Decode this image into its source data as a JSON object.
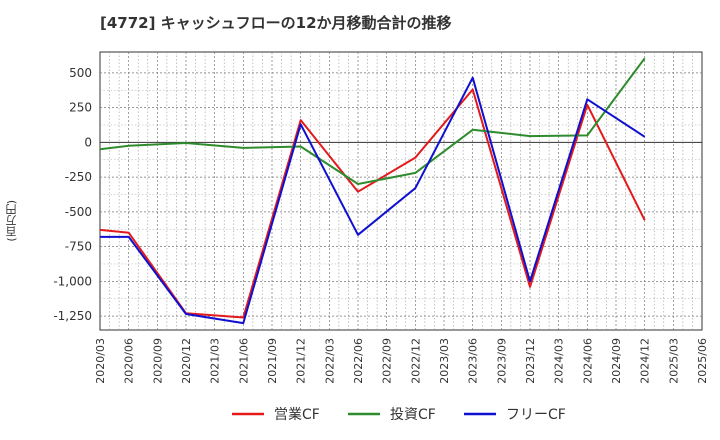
{
  "chart_data": {
    "type": "line",
    "title": "[4772]  キャッシュフローの12か月移動合計の推移",
    "ylabel": "(百万円)",
    "xlabel": "",
    "ylim": [
      -1350,
      650
    ],
    "yticks": [
      500,
      250,
      0,
      -250,
      -500,
      -750,
      -1000,
      -1250
    ],
    "ytick_labels": [
      "500",
      "250",
      "0",
      "-250",
      "-500",
      "-750",
      "-1,000",
      "-1,250"
    ],
    "categories": [
      "2020/03",
      "2020/06",
      "2020/09",
      "2020/12",
      "2021/03",
      "2021/06",
      "2021/09",
      "2021/12",
      "2022/03",
      "2022/06",
      "2022/09",
      "2022/12",
      "2023/03",
      "2023/06",
      "2023/09",
      "2023/12",
      "2024/03",
      "2024/06",
      "2024/09",
      "2024/12",
      "2025/03",
      "2025/06"
    ],
    "grid": true,
    "legend_position": "bottom",
    "series": [
      {
        "name": "営業CF",
        "color": "#e31a1c",
        "values": [
          -630,
          -650,
          null,
          -1230,
          null,
          -1260,
          null,
          160,
          null,
          -355,
          null,
          -110,
          null,
          380,
          null,
          -1040,
          null,
          270,
          null,
          -560,
          null,
          null
        ]
      },
      {
        "name": "投資CF",
        "color": "#2e8b2e",
        "values": [
          -50,
          -25,
          null,
          -5,
          null,
          -40,
          null,
          -30,
          null,
          -300,
          null,
          -220,
          null,
          90,
          null,
          45,
          null,
          50,
          null,
          605,
          null,
          null
        ]
      },
      {
        "name": "フリーCF",
        "color": "#1010d0",
        "values": [
          -680,
          -680,
          null,
          -1235,
          null,
          -1300,
          null,
          130,
          null,
          -665,
          null,
          -330,
          null,
          465,
          null,
          -1000,
          null,
          310,
          null,
          40,
          null,
          null
        ]
      }
    ]
  }
}
